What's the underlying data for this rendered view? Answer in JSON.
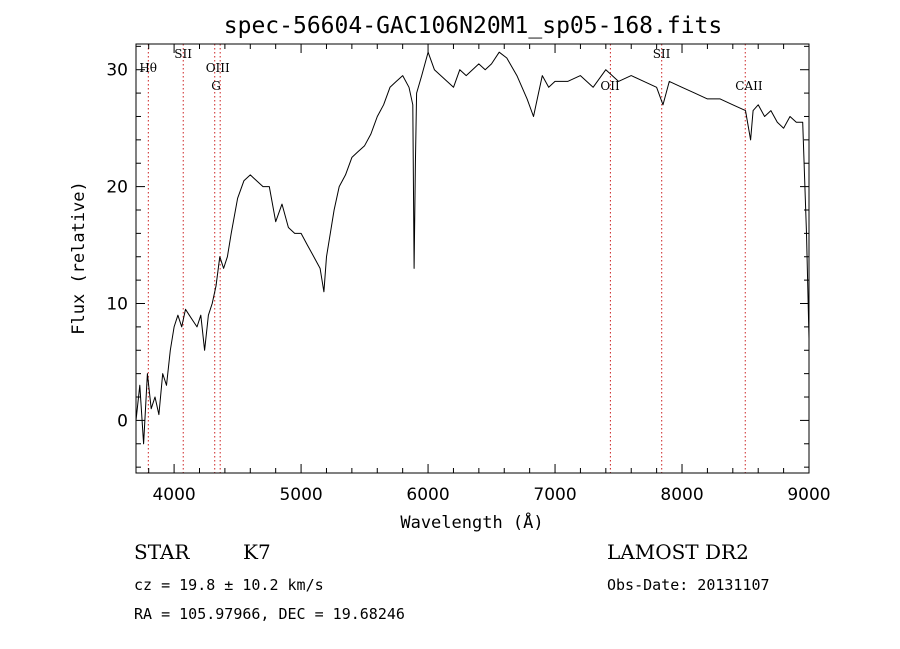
{
  "chart_data": {
    "type": "line",
    "title": "spec-56604-GAC106N20M1_sp05-168.fits",
    "xlabel": "Wavelength (Å)",
    "ylabel": "Flux (relative)",
    "xlim": [
      3700,
      9000
    ],
    "ylim": [
      -4.5,
      32.2
    ],
    "xticks": [
      4000,
      5000,
      6000,
      7000,
      8000,
      9000
    ],
    "yticks": [
      0,
      10,
      20,
      30
    ],
    "grid": false,
    "series": [
      {
        "color": "#000000",
        "x": [
          3700,
          3730,
          3760,
          3790,
          3820,
          3850,
          3880,
          3910,
          3940,
          3970,
          4000,
          4030,
          4060,
          4090,
          4120,
          4150,
          4180,
          4210,
          4240,
          4270,
          4300,
          4330,
          4360,
          4390,
          4420,
          4450,
          4500,
          4550,
          4600,
          4650,
          4700,
          4750,
          4800,
          4850,
          4900,
          4950,
          5000,
          5050,
          5100,
          5150,
          5180,
          5200,
          5230,
          5260,
          5300,
          5350,
          5400,
          5450,
          5500,
          5550,
          5600,
          5650,
          5700,
          5750,
          5800,
          5850,
          5880,
          5890,
          5900,
          5910,
          5950,
          6000,
          6050,
          6100,
          6150,
          6200,
          6250,
          6300,
          6350,
          6400,
          6450,
          6500,
          6560,
          6620,
          6700,
          6780,
          6830,
          6870,
          6900,
          6950,
          7000,
          7100,
          7200,
          7300,
          7400,
          7500,
          7600,
          7700,
          7800,
          7850,
          7900,
          8000,
          8100,
          8200,
          8300,
          8400,
          8500,
          8540,
          8560,
          8600,
          8650,
          8700,
          8750,
          8800,
          8850,
          8900,
          8950,
          8980,
          9000
        ],
        "y": [
          0,
          3,
          -2,
          4,
          1,
          2,
          0.5,
          4,
          3,
          6,
          8,
          9,
          8,
          9.5,
          9,
          8.5,
          8,
          9,
          6,
          9,
          10,
          11.5,
          14,
          13,
          14,
          16,
          19,
          20.5,
          21,
          20.5,
          20,
          20,
          17,
          18.5,
          16.5,
          16,
          16,
          15,
          14,
          13,
          11,
          14,
          16,
          18,
          20,
          21,
          22.5,
          23,
          23.5,
          24.5,
          26,
          27,
          28.5,
          29,
          29.5,
          28.5,
          27,
          13,
          22,
          28,
          29.5,
          31.5,
          30,
          29.5,
          29,
          28.5,
          30,
          29.5,
          30,
          30.5,
          30,
          30.5,
          31.5,
          31,
          29.5,
          27.5,
          26,
          28,
          29.5,
          28.5,
          29,
          29,
          29.5,
          28.5,
          30,
          29,
          29.5,
          29,
          28.5,
          27,
          29,
          28.5,
          28,
          27.5,
          27.5,
          27,
          26.5,
          24,
          26.5,
          27,
          26,
          26.5,
          25.5,
          25,
          26,
          25.5,
          25.5,
          16,
          7
        ]
      }
    ],
    "line_markers": [
      {
        "label": "Hθ",
        "x": 3797
      },
      {
        "label": "SII",
        "x": 4072
      },
      {
        "label": "OIII",
        "x": 4320
      },
      {
        "label": "G",
        "x": 4363
      },
      {
        "label": "OII",
        "x": 7436
      },
      {
        "label": "SII",
        "x": 7840
      },
      {
        "label": "CAII",
        "x": 8498
      }
    ]
  },
  "info": {
    "object_class": "STAR",
    "subclass": "K7",
    "survey": "LAMOST DR2",
    "redshift": "cz = 19.8 ± 10.2 km/s",
    "obs_date": "Obs-Date: 20131107",
    "coords": "RA = 105.97966, DEC =  19.68246"
  }
}
